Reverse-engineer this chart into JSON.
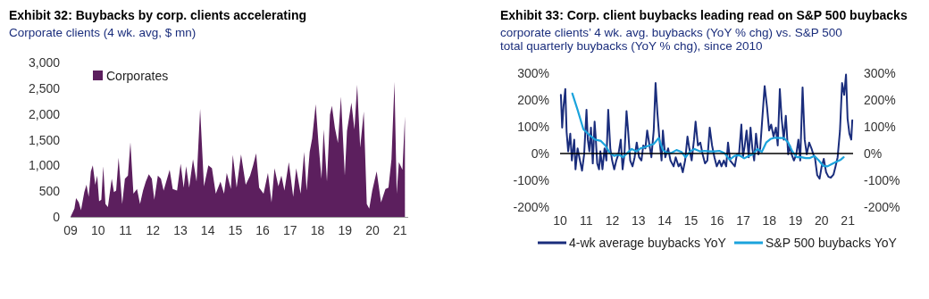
{
  "chart_data": [
    {
      "type": "area",
      "title": "Exhibit 32: Buybacks by corp. clients accelerating",
      "subtitle": "Corporate clients (4 wk. avg, $ mn)",
      "legend": "top left",
      "xlim": [
        2009,
        2021.3
      ],
      "xticks": [
        {
          "value": 2009,
          "label": "09"
        },
        {
          "value": 2010,
          "label": "10"
        },
        {
          "value": 2011,
          "label": "11"
        },
        {
          "value": 2012,
          "label": "12"
        },
        {
          "value": 2013,
          "label": "13"
        },
        {
          "value": 2014,
          "label": "14"
        },
        {
          "value": 2015,
          "label": "15"
        },
        {
          "value": 2016,
          "label": "16"
        },
        {
          "value": 2017,
          "label": "17"
        },
        {
          "value": 2018,
          "label": "18"
        },
        {
          "value": 2019,
          "label": "19"
        },
        {
          "value": 2020,
          "label": "20"
        },
        {
          "value": 2021,
          "label": "21"
        }
      ],
      "ylim": [
        0,
        3000
      ],
      "yticks": [
        0,
        500,
        {
          "value": 1000,
          "label": "1,000"
        },
        {
          "value": 1500,
          "label": "1,500"
        },
        {
          "value": 2000,
          "label": "2,000"
        },
        {
          "value": 2500,
          "label": "2,500"
        },
        {
          "value": 3000,
          "label": "3,000"
        }
      ],
      "series": [
        {
          "name": "Corporates",
          "color": "#5c1f5e",
          "x": [
            2009.0,
            2009.14,
            2009.2,
            2009.3,
            2009.38,
            2009.5,
            2009.58,
            2009.66,
            2009.74,
            2009.81,
            2009.9,
            2009.97,
            2010.04,
            2010.12,
            2010.19,
            2010.27,
            2010.36,
            2010.5,
            2010.58,
            2010.66,
            2010.75,
            2010.88,
            2010.98,
            2011.09,
            2011.18,
            2011.29,
            2011.42,
            2011.53,
            2011.64,
            2011.74,
            2011.85,
            2011.96,
            2012.05,
            2012.18,
            2012.29,
            2012.39,
            2012.61,
            2012.72,
            2012.88,
            2013.01,
            2013.12,
            2013.21,
            2013.32,
            2013.46,
            2013.59,
            2013.72,
            2013.86,
            2014.02,
            2014.15,
            2014.29,
            2014.46,
            2014.59,
            2014.69,
            2014.84,
            2014.91,
            2015.05,
            2015.21,
            2015.38,
            2015.54,
            2015.65,
            2015.76,
            2015.87,
            2016.03,
            2016.19,
            2016.32,
            2016.43,
            2016.57,
            2016.68,
            2016.79,
            2016.95,
            2017.11,
            2017.22,
            2017.38,
            2017.51,
            2017.6,
            2017.71,
            2017.8,
            2017.93,
            2018.03,
            2018.14,
            2018.22,
            2018.34,
            2018.45,
            2018.52,
            2018.63,
            2018.74,
            2018.85,
            2018.99,
            2019.07,
            2019.23,
            2019.34,
            2019.44,
            2019.55,
            2019.68,
            2019.79,
            2019.88,
            2019.99,
            2020.15,
            2020.31,
            2020.47,
            2020.58,
            2020.69,
            2020.8,
            2020.88,
            2020.96,
            2021.09,
            2021.18
          ],
          "values": [
            0,
            160,
            365,
            280,
            130,
            480,
            625,
            390,
            885,
            1000,
            625,
            800,
            305,
            335,
            985,
            250,
            190,
            740,
            480,
            510,
            1150,
            250,
            740,
            800,
            1450,
            450,
            540,
            250,
            510,
            685,
            830,
            740,
            335,
            800,
            740,
            510,
            915,
            540,
            510,
            1030,
            570,
            985,
            570,
            1120,
            685,
            2100,
            595,
            1000,
            945,
            450,
            685,
            450,
            855,
            540,
            1205,
            570,
            1215,
            625,
            800,
            1000,
            1235,
            570,
            450,
            855,
            280,
            945,
            595,
            800,
            510,
            1060,
            390,
            945,
            450,
            1260,
            510,
            1260,
            1520,
            2190,
            1435,
            740,
            1700,
            685,
            1985,
            2160,
            1725,
            1435,
            2335,
            800,
            1670,
            2220,
            1700,
            2565,
            1350,
            2045,
            250,
            160,
            510,
            885,
            280,
            540,
            570,
            1120,
            2625,
            450,
            1060,
            915,
            1955
          ]
        }
      ]
    },
    {
      "type": "line",
      "title": "Exhibit 33: Corp. client buybacks leading read on S&P 500 buybacks",
      "subtitle": "corporate clients’ 4 wk. avg. buybacks (YoY % chg) vs. S&P 500 total quarterly buybacks (YoY % chg), since 2010",
      "legend": "bottom",
      "xlim": [
        2010,
        2021.2
      ],
      "xticks": [
        {
          "value": 2010,
          "label": "10"
        },
        {
          "value": 2011,
          "label": "11"
        },
        {
          "value": 2012,
          "label": "12"
        },
        {
          "value": 2013,
          "label": "13"
        },
        {
          "value": 2014,
          "label": "14"
        },
        {
          "value": 2015,
          "label": "15"
        },
        {
          "value": 2016,
          "label": "16"
        },
        {
          "value": 2017,
          "label": "17"
        },
        {
          "value": 2018,
          "label": "18"
        },
        {
          "value": 2019,
          "label": "19"
        },
        {
          "value": 2020,
          "label": "20"
        },
        {
          "value": 2021,
          "label": "21"
        }
      ],
      "ylim": [
        -200,
        300
      ],
      "yticks": [
        {
          "value": -200,
          "label": "-200%"
        },
        {
          "value": -100,
          "label": "-100%"
        },
        {
          "value": 0,
          "label": "0%"
        },
        {
          "value": 100,
          "label": "100%"
        },
        {
          "value": 200,
          "label": "200%"
        },
        {
          "value": 300,
          "label": "300%"
        }
      ],
      "y2lim": [
        -200,
        300
      ],
      "y2ticks": [
        {
          "value": -200,
          "label": "-200%"
        },
        {
          "value": -100,
          "label": "-100%"
        },
        {
          "value": 0,
          "label": "0%"
        },
        {
          "value": 100,
          "label": "100%"
        },
        {
          "value": 200,
          "label": "200%"
        },
        {
          "value": 300,
          "label": "300%"
        }
      ],
      "ref_lines": [
        {
          "axis": "y",
          "value": 0,
          "color": "#000000"
        }
      ],
      "series": [
        {
          "name": "4-wk average buybacks YoY",
          "color": "#1a2d7c",
          "x": [
            2010.03,
            2010.08,
            2010.13,
            2010.2,
            2010.25,
            2010.31,
            2010.39,
            2010.45,
            2010.54,
            2010.59,
            2010.67,
            2010.76,
            2010.84,
            2010.92,
            2011.01,
            2011.06,
            2011.12,
            2011.18,
            2011.25,
            2011.32,
            2011.36,
            2011.42,
            2011.49,
            2011.54,
            2011.62,
            2011.7,
            2011.77,
            2011.84,
            2011.92,
            2011.99,
            2012.07,
            2012.15,
            2012.23,
            2012.32,
            2012.39,
            2012.46,
            2012.54,
            2012.6,
            2012.68,
            2012.77,
            2012.85,
            2012.93,
            2013.02,
            2013.11,
            2013.18,
            2013.26,
            2013.33,
            2013.42,
            2013.49,
            2013.58,
            2013.65,
            2013.72,
            2013.8,
            2013.88,
            2013.93,
            2014.02,
            2014.13,
            2014.22,
            2014.34,
            2014.42,
            2014.53,
            2014.6,
            2014.69,
            2014.78,
            2014.87,
            2014.94,
            2015.03,
            2015.12,
            2015.18,
            2015.27,
            2015.36,
            2015.45,
            2015.54,
            2015.63,
            2015.72,
            2015.81,
            2015.9,
            2015.99,
            2016.09,
            2016.17,
            2016.26,
            2016.35,
            2016.42,
            2016.5,
            2016.59,
            2016.68,
            2016.76,
            2016.84,
            2016.93,
            2016.99,
            2017.06,
            2017.13,
            2017.21,
            2017.28,
            2017.35,
            2017.42,
            2017.49,
            2017.58,
            2017.65,
            2017.73,
            2017.82,
            2017.91,
            2017.99,
            2018.07,
            2018.16,
            2018.25,
            2018.32,
            2018.4,
            2018.47,
            2018.55,
            2018.63,
            2018.72,
            2018.78,
            2018.85,
            2018.94,
            2019.03,
            2019.11,
            2019.18,
            2019.27,
            2019.35,
            2019.43,
            2019.52,
            2019.61,
            2019.68,
            2019.74,
            2019.83,
            2019.92,
            2020.0,
            2020.08,
            2020.17,
            2020.26,
            2020.35,
            2020.45,
            2020.53,
            2020.61,
            2020.7,
            2020.78,
            2020.86,
            2020.93,
            2020.99,
            2021.06,
            2021.13,
            2021.17
          ],
          "values": [
            219,
            97,
            174,
            241,
            80,
            8,
            74,
            -26,
            52,
            -59,
            19,
            -26,
            -64,
            -3,
            163,
            52,
            8,
            97,
            -37,
            119,
            63,
            -37,
            -59,
            8,
            -59,
            19,
            -26,
            163,
            19,
            -26,
            -59,
            -26,
            -3,
            52,
            -59,
            -3,
            158,
            86,
            -26,
            -48,
            -14,
            41,
            -14,
            -26,
            30,
            19,
            86,
            30,
            -14,
            86,
            263,
            152,
            52,
            -26,
            86,
            -14,
            19,
            -26,
            -48,
            -14,
            -48,
            -37,
            -70,
            -26,
            63,
            19,
            -26,
            52,
            119,
            30,
            41,
            -3,
            -37,
            -26,
            97,
            30,
            -14,
            -48,
            -26,
            -48,
            -26,
            -48,
            41,
            -26,
            -37,
            -48,
            -3,
            -3,
            108,
            -14,
            30,
            86,
            -14,
            97,
            19,
            -26,
            74,
            -3,
            19,
            130,
            252,
            174,
            86,
            108,
            63,
            97,
            30,
            241,
            130,
            52,
            141,
            -3,
            30,
            -3,
            -26,
            -3,
            52,
            -26,
            247,
            52,
            -3,
            41,
            19,
            -3,
            -14,
            -81,
            -94,
            -48,
            -20,
            -70,
            -87,
            -90,
            -79,
            -48,
            -14,
            86,
            263,
            219,
            295,
            130,
            74,
            52,
            124
          ]
        },
        {
          "name": "S&P 500 buybacks YoY",
          "color": "#1ba3dc",
          "x": [
            2010.47,
            2010.67,
            2010.89,
            2011.12,
            2011.34,
            2011.56,
            2011.73,
            2011.9,
            2012.07,
            2012.23,
            2012.4,
            2012.57,
            2012.74,
            2012.91,
            2013.07,
            2013.24,
            2013.41,
            2013.58,
            2013.77,
            2013.93,
            2014.1,
            2014.25,
            2014.45,
            2014.64,
            2014.8,
            2014.97,
            2015.14,
            2015.34,
            2015.53,
            2015.72,
            2015.9,
            2016.09,
            2016.28,
            2016.48,
            2016.67,
            2016.84,
            2017.04,
            2017.21,
            2017.37,
            2017.54,
            2017.71,
            2017.88,
            2018.04,
            2018.21,
            2018.38,
            2018.55,
            2018.72,
            2018.88,
            2019.05,
            2019.22,
            2019.39,
            2019.55,
            2019.72,
            2019.89,
            2020.06,
            2020.22,
            2020.39,
            2020.56,
            2020.73,
            2020.84
          ],
          "values": [
            224,
            163,
            91,
            69,
            52,
            47,
            30,
            2,
            -9,
            -3,
            -14,
            2,
            17,
            8,
            19,
            24,
            30,
            36,
            58,
            13,
            2,
            2,
            13,
            6,
            -14,
            8,
            17,
            8,
            10,
            8,
            8,
            10,
            2,
            -23,
            -9,
            -6,
            -18,
            -9,
            -3,
            17,
            6,
            41,
            54,
            59,
            58,
            58,
            41,
            8,
            -14,
            -14,
            -17,
            -17,
            -9,
            -26,
            -46,
            -48,
            -39,
            -31,
            -23,
            -14
          ]
        }
      ]
    }
  ]
}
